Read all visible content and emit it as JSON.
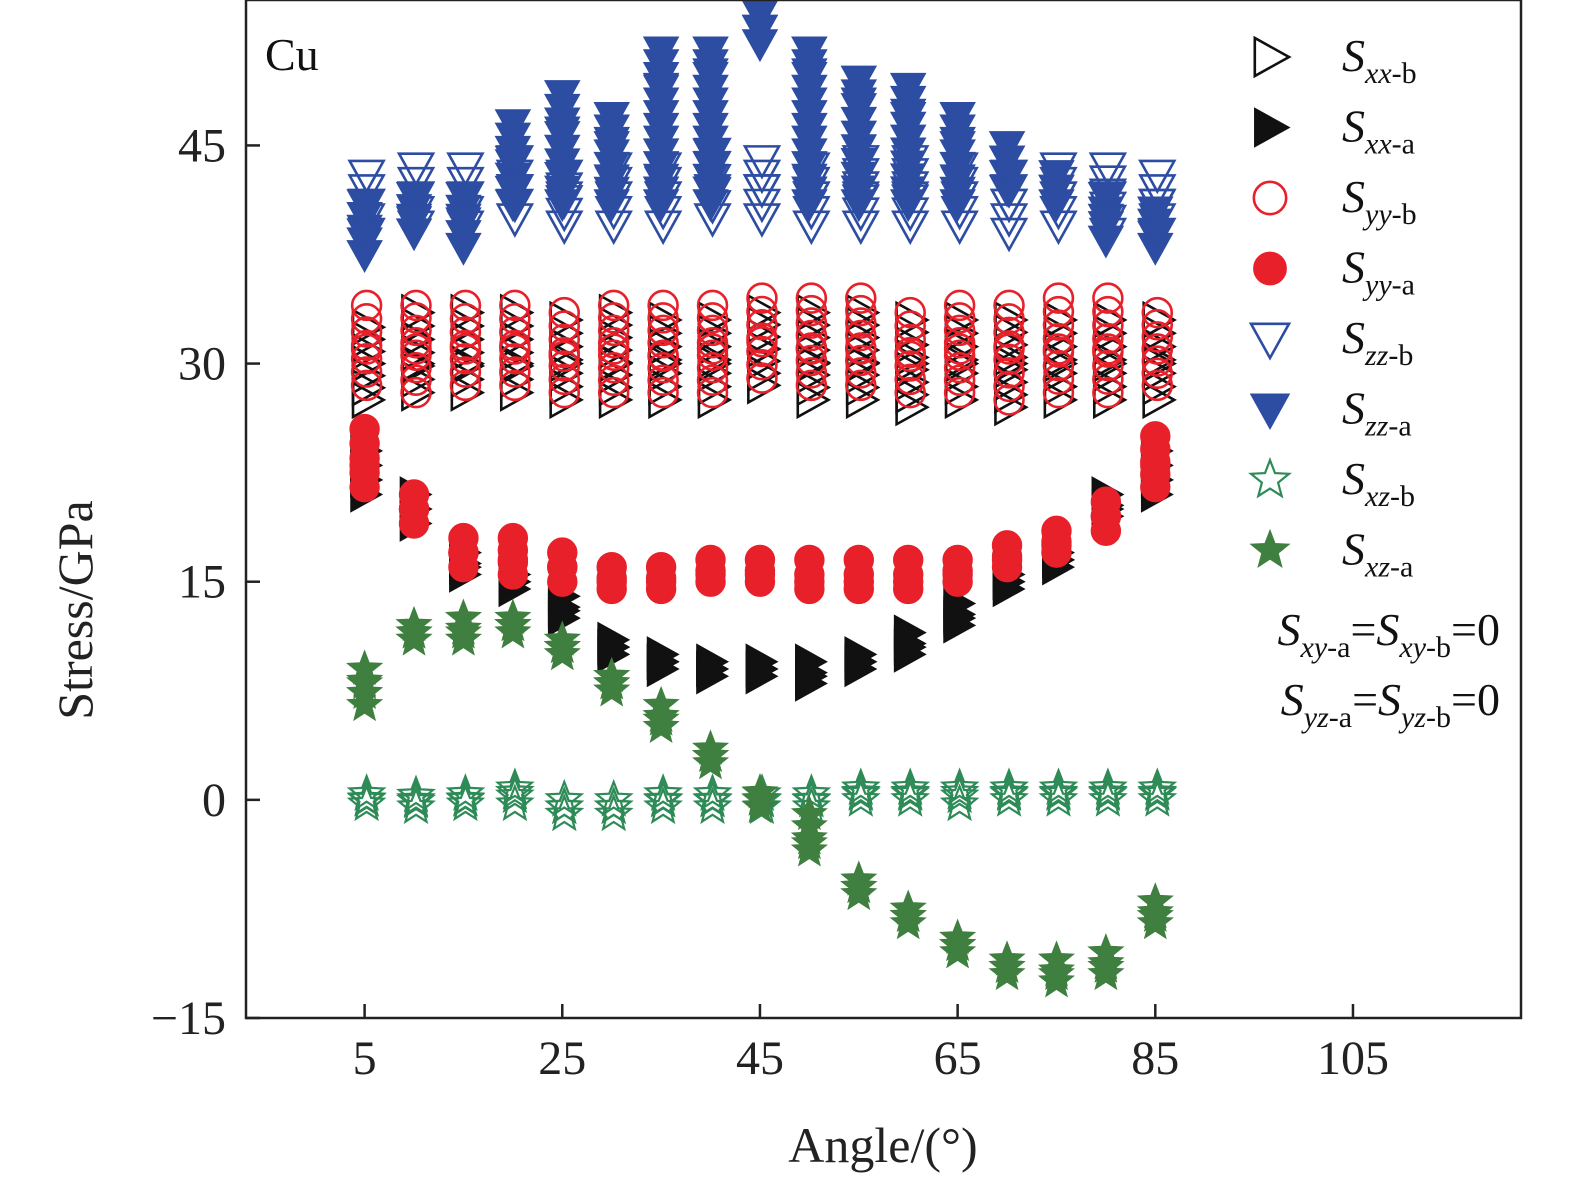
{
  "chart_data": {
    "type": "scatter",
    "annotation": "Cu",
    "xlabel": "Angle/(°)",
    "ylabel": "Stress/GPa",
    "xlim": [
      -7,
      122
    ],
    "ylim": [
      -15,
      55
    ],
    "xticks": [
      5,
      25,
      45,
      65,
      85,
      105
    ],
    "yticks": [
      -15,
      0,
      15,
      30,
      45
    ],
    "x": [
      5,
      10,
      15,
      20,
      25,
      30,
      35,
      40,
      45,
      50,
      55,
      60,
      65,
      70,
      75,
      80,
      85
    ],
    "series": [
      {
        "name": "xx-b",
        "name_sub": "xx",
        "name_suffix": "-b",
        "marker": "triangle-right-open",
        "color": "#111111",
        "values": [
          30,
          30,
          30,
          30,
          30,
          30,
          30,
          30,
          31,
          30,
          30,
          30,
          30,
          30,
          30,
          30,
          30
        ],
        "low": [
          27.5,
          28,
          28,
          28,
          27.5,
          27.5,
          27.5,
          27.5,
          28.5,
          27.5,
          27.5,
          27,
          27.5,
          27,
          27.5,
          27.5,
          27.5
        ],
        "high": [
          32.5,
          33.5,
          33.5,
          33.5,
          33,
          33.5,
          33,
          33,
          33.5,
          33.5,
          33.5,
          33,
          33,
          33,
          33,
          33,
          33
        ]
      },
      {
        "name": "xx-a",
        "name_sub": "xx",
        "name_suffix": "-a",
        "marker": "triangle-right-filled",
        "color": "#111111",
        "values": [
          22,
          20,
          16,
          15,
          13,
          10.5,
          9.5,
          9,
          9,
          8.5,
          9.5,
          10.5,
          12.5,
          15,
          16.5,
          20,
          22
        ],
        "low": [
          21,
          19,
          15.5,
          14.5,
          12.5,
          10,
          9,
          8.5,
          8.5,
          8,
          9,
          10,
          12,
          14.5,
          16,
          19.5,
          21
        ],
        "high": [
          24,
          21,
          17,
          15.5,
          14,
          11,
          10,
          9.5,
          9.5,
          9.5,
          10,
          11.5,
          13.5,
          15.5,
          17,
          21,
          24
        ]
      },
      {
        "name": "yy-b",
        "name_sub": "yy",
        "name_suffix": "-b",
        "marker": "circle-open",
        "color": "#e8202a",
        "values": [
          31,
          31,
          31,
          31,
          30.5,
          31,
          30.5,
          31,
          31.5,
          31,
          31,
          30.5,
          31,
          31,
          31,
          31,
          31
        ],
        "low": [
          28.5,
          28,
          28.5,
          28.5,
          28,
          28,
          28,
          28,
          29,
          28.5,
          28.5,
          28,
          28,
          27.5,
          28,
          28,
          28.5
        ],
        "high": [
          34,
          34,
          34,
          34,
          33.5,
          34,
          34,
          34,
          34.5,
          34.5,
          34.5,
          33.5,
          34,
          34,
          34.5,
          34.5,
          33.5
        ]
      },
      {
        "name": "yy-a",
        "name_sub": "yy",
        "name_suffix": "-a",
        "marker": "circle-filled",
        "color": "#e8202a",
        "values": [
          23,
          20,
          17,
          16.5,
          16,
          15,
          15,
          15.5,
          15.5,
          15,
          15,
          15,
          15.5,
          16.5,
          17.5,
          19.5,
          23
        ],
        "low": [
          21.5,
          19,
          16,
          15.5,
          15,
          14.5,
          14.5,
          15,
          15,
          14.5,
          14.5,
          14.5,
          15,
          16,
          17,
          18.5,
          21.5
        ],
        "high": [
          25.5,
          21,
          18,
          18,
          17,
          16,
          16,
          16.5,
          16.5,
          16.5,
          16.5,
          16.5,
          16.5,
          17.5,
          18.5,
          20.5,
          25
        ]
      },
      {
        "name": "zz-b",
        "name_sub": "zz",
        "name_suffix": "-b",
        "marker": "triangle-down-open",
        "color": "#2d4da3",
        "values": [
          41,
          41.5,
          41.5,
          42,
          41.5,
          41.5,
          41.5,
          42,
          42,
          41.5,
          41.5,
          41.5,
          41.5,
          41,
          41.5,
          41.5,
          41
        ],
        "low": [
          39,
          39.5,
          39.5,
          40,
          39.5,
          39.5,
          39.5,
          40,
          40,
          39.5,
          39.5,
          39.5,
          39.5,
          39,
          39.5,
          39,
          39
        ],
        "high": [
          43,
          43.5,
          43.5,
          44,
          43,
          43.5,
          43.5,
          44.5,
          44,
          43.5,
          44,
          44,
          43.5,
          43,
          43.5,
          43.5,
          43
        ]
      },
      {
        "name": "zz-a",
        "name_sub": "zz",
        "name_suffix": "-a",
        "marker": "triangle-down-filled",
        "color": "#2d4da3",
        "values": [
          39,
          40,
          40,
          44,
          46,
          45,
          49,
          50,
          53,
          50,
          48,
          47,
          45,
          44,
          42,
          40,
          39
        ],
        "low": [
          37.5,
          39,
          38,
          41,
          41,
          41,
          41,
          41,
          52,
          41,
          41,
          41,
          41,
          42,
          41,
          38.5,
          38
        ],
        "high": [
          41,
          41.5,
          41.5,
          46.5,
          48.5,
          47,
          51.5,
          51.5,
          54,
          51.5,
          49.5,
          49,
          47,
          45,
          43,
          41.5,
          40.5
        ]
      },
      {
        "name": "xz-b",
        "name_sub": "xz",
        "name_suffix": "-b",
        "marker": "star-open",
        "color": "#2e8b57",
        "values": [
          0,
          0,
          0,
          0.5,
          -0.5,
          -0.5,
          0,
          0,
          0,
          0,
          0.5,
          0.5,
          0.5,
          0.5,
          0.5,
          0.5,
          0.5
        ],
        "low": [
          -0.3,
          -0.5,
          -0.3,
          -0.3,
          -1,
          -1,
          -0.5,
          -0.5,
          -0.5,
          -0.5,
          0,
          0,
          -0.3,
          0,
          0,
          0,
          0
        ],
        "high": [
          0.4,
          0.3,
          0.4,
          0.8,
          0,
          0,
          0.4,
          0.4,
          0.4,
          0.4,
          0.8,
          0.8,
          0.8,
          0.8,
          0.8,
          0.8,
          0.8
        ]
      },
      {
        "name": "xz-a",
        "name_sub": "xz",
        "name_suffix": "-a",
        "marker": "star-filled",
        "color": "#3f7f3f",
        "values": [
          8,
          11.5,
          11.5,
          12,
          10.5,
          8,
          5.5,
          3,
          0,
          -3,
          -6,
          -8,
          -10,
          -11.5,
          -12,
          -11.5,
          -8
        ],
        "low": [
          6.5,
          11,
          11,
          11.5,
          10,
          7.5,
          5,
          2.5,
          -0.5,
          -3.5,
          -6.5,
          -8.5,
          -10.5,
          -12,
          -12.5,
          -12,
          -8.5
        ],
        "high": [
          9,
          12,
          12.5,
          12.5,
          11,
          8.5,
          6.5,
          3.5,
          0.5,
          -1,
          -5.5,
          -7.5,
          -9.5,
          -11,
          -11,
          -10.5,
          -7
        ]
      }
    ],
    "notes": [
      {
        "parts": [
          {
            "t": "S",
            "i": true
          },
          {
            "t": "xy",
            "sub": true,
            "i": true
          },
          {
            "t": "-a",
            "sub": true
          },
          {
            "t": "="
          },
          {
            "t": "S",
            "i": true
          },
          {
            "t": "xy",
            "sub": true,
            "i": true
          },
          {
            "t": "-b",
            "sub": true
          },
          {
            "t": "=0"
          }
        ]
      },
      {
        "parts": [
          {
            "t": "S",
            "i": true
          },
          {
            "t": "yz",
            "sub": true,
            "i": true
          },
          {
            "t": "-a",
            "sub": true
          },
          {
            "t": "="
          },
          {
            "t": "S",
            "i": true
          },
          {
            "t": "yz",
            "sub": true,
            "i": true
          },
          {
            "t": "-b",
            "sub": true
          },
          {
            "t": "=0"
          }
        ]
      }
    ],
    "legend_position": "right",
    "grid": false
  }
}
